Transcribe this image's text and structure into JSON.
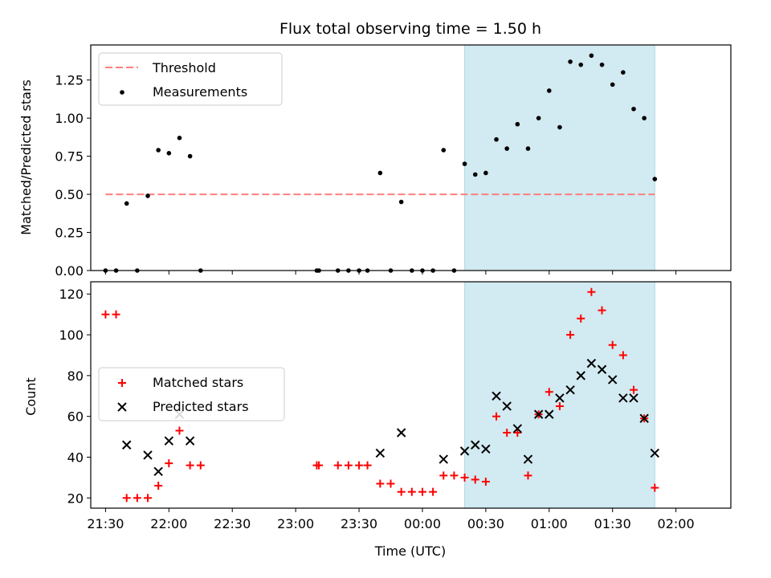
{
  "colors": {
    "span": "#add8e6",
    "threshold": "#ff7f7f",
    "measurement": "#000000",
    "matched": "#ff0000",
    "predicted": "#000000"
  },
  "chart_data": [
    {
      "type": "scatter",
      "title": "Flux total observing time = 1.50 h",
      "xlabel": "",
      "ylabel": "Matched/Predicted stars",
      "ylim": [
        0,
        1.48
      ],
      "yticks": [
        0,
        0.25,
        0.5,
        0.75,
        1.0,
        1.25
      ],
      "ytick_labels": [
        "0.00",
        "0.25",
        "0.50",
        "0.75",
        "1.00",
        "1.25"
      ],
      "xlim": [
        -7,
        296
      ],
      "shaded_span": [
        170,
        260
      ],
      "threshold": {
        "label": "Threshold",
        "y": 0.5,
        "x_range": [
          0,
          260
        ]
      },
      "legend_position": "upper left",
      "series": [
        {
          "name": "Measurements",
          "x": [
            0,
            5,
            10,
            15,
            20,
            25,
            30,
            35,
            40,
            45,
            100,
            101,
            110,
            115,
            120,
            124,
            130,
            135,
            140,
            145,
            150,
            155,
            160,
            165,
            170,
            175,
            180,
            185,
            190,
            195,
            200,
            205,
            210,
            215,
            220,
            225,
            230,
            235,
            240,
            245,
            250,
            255,
            260
          ],
          "y": [
            0,
            0,
            0.44,
            0,
            0.49,
            0.79,
            0.77,
            0.87,
            0.75,
            0,
            0,
            0,
            0,
            0,
            0,
            0,
            0.64,
            0,
            0.45,
            0,
            0,
            0,
            0.79,
            0,
            0.7,
            0.63,
            0.64,
            0.86,
            0.8,
            0.96,
            0.8,
            1.0,
            1.18,
            0.94,
            1.37,
            1.35,
            1.41,
            1.35,
            1.22,
            1.3,
            1.06,
            1.0,
            0.6
          ]
        }
      ]
    },
    {
      "type": "scatter",
      "title": "",
      "xlabel": "Time (UTC)",
      "ylabel": "Count",
      "ylim": [
        15,
        126
      ],
      "yticks": [
        20,
        40,
        60,
        80,
        100,
        120
      ],
      "ytick_labels": [
        "20",
        "40",
        "60",
        "80",
        "100",
        "120"
      ],
      "xlim": [
        -7,
        296
      ],
      "xticks": [
        0,
        30,
        60,
        90,
        120,
        150,
        180,
        210,
        240,
        270
      ],
      "xtick_labels": [
        "21:30",
        "22:00",
        "22:30",
        "23:00",
        "23:30",
        "00:00",
        "00:30",
        "01:00",
        "01:30",
        "02:00"
      ],
      "shaded_span": [
        170,
        260
      ],
      "legend_position": "center left",
      "series": [
        {
          "name": "Matched stars",
          "x": [
            0,
            5,
            10,
            15,
            20,
            25,
            30,
            35,
            40,
            45,
            100,
            101,
            110,
            115,
            120,
            124,
            130,
            135,
            140,
            145,
            150,
            155,
            160,
            165,
            170,
            175,
            180,
            185,
            190,
            195,
            200,
            205,
            210,
            215,
            220,
            225,
            230,
            235,
            240,
            245,
            250,
            255,
            260
          ],
          "y": [
            110,
            110,
            20,
            20,
            20,
            26,
            37,
            53,
            36,
            36,
            36,
            36,
            36,
            36,
            36,
            36,
            27,
            27,
            23,
            23,
            23,
            23,
            31,
            31,
            30,
            29,
            28,
            60,
            52,
            52,
            31,
            61,
            72,
            65,
            100,
            108,
            121,
            112,
            95,
            90,
            73,
            59,
            25
          ]
        },
        {
          "name": "Predicted stars",
          "x": [
            10,
            20,
            25,
            30,
            35,
            40,
            130,
            140,
            160,
            170,
            175,
            180,
            185,
            190,
            195,
            200,
            205,
            210,
            215,
            220,
            225,
            230,
            235,
            240,
            245,
            250,
            255,
            260
          ],
          "y": [
            46,
            41,
            33,
            48,
            61,
            48,
            42,
            52,
            39,
            43,
            46,
            44,
            70,
            65,
            54,
            39,
            61,
            61,
            69,
            73,
            80,
            86,
            83,
            78,
            69,
            69,
            59,
            42
          ]
        }
      ]
    }
  ]
}
